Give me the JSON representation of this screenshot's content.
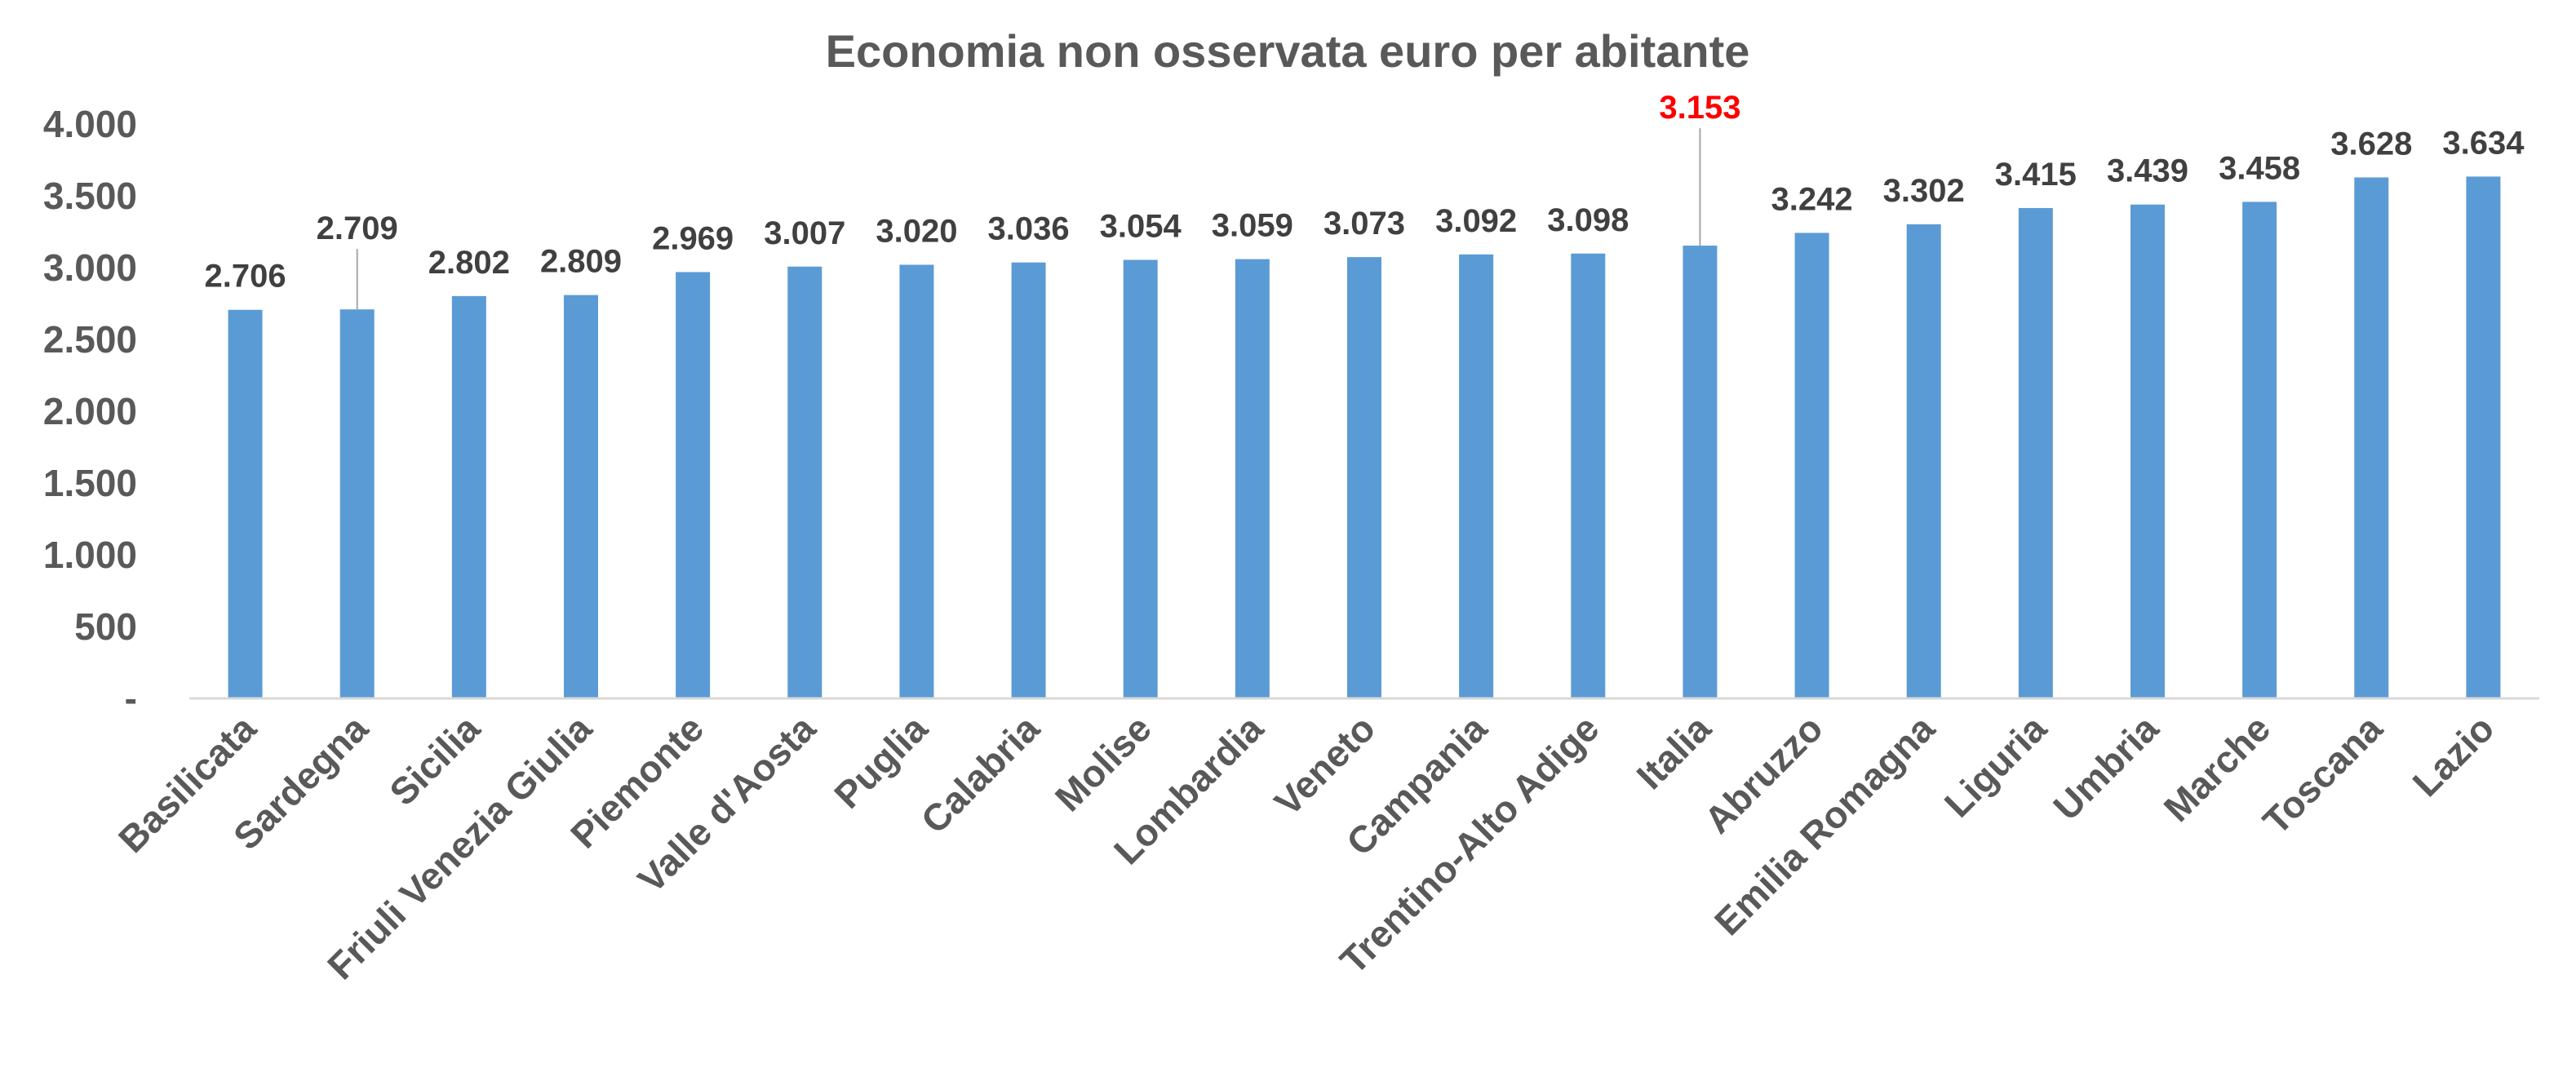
{
  "chart_data": {
    "type": "bar",
    "title": "Economia non osservata euro per abitante",
    "xlabel": "",
    "ylabel": "",
    "ylim": [
      0,
      4000
    ],
    "grid": false,
    "legend": "none",
    "y_ticks": [
      "-",
      "500",
      "1.000",
      "1.500",
      "2.000",
      "2.500",
      "3.000",
      "3.500",
      "4.000"
    ],
    "y_tick_values": [
      0,
      500,
      1000,
      1500,
      2000,
      2500,
      3000,
      3500,
      4000
    ],
    "categories": [
      "Basilicata",
      "Sardegna",
      "Sicilia",
      "Friuli Venezia Giulia",
      "Piemonte",
      "Valle d'Aosta",
      "Puglia",
      "Calabria",
      "Molise",
      "Lombardia",
      "Veneto",
      "Campania",
      "Trentino-Alto Adige",
      "Italia",
      "Abruzzo",
      "Emilia Romagna",
      "Liguria",
      "Umbria",
      "Marche",
      "Toscana",
      "Lazio"
    ],
    "values": [
      2706,
      2709,
      2802,
      2809,
      2969,
      3007,
      3020,
      3036,
      3054,
      3059,
      3073,
      3092,
      3098,
      3153,
      3242,
      3302,
      3415,
      3439,
      3458,
      3628,
      3634
    ],
    "data_labels": [
      "2.706",
      "2.709",
      "2.802",
      "2.809",
      "2.969",
      "3.007",
      "3.020",
      "3.036",
      "3.054",
      "3.059",
      "3.073",
      "3.092",
      "3.098",
      "3.153",
      "3.242",
      "3.302",
      "3.415",
      "3.439",
      "3.458",
      "3.628",
      "3.634"
    ],
    "highlight_category": "Italia",
    "colors": {
      "bar": "#5b9bd5",
      "highlight_label": "#ff0000",
      "label": "#404040",
      "axis_text": "#595959",
      "axis_line": "#d9d9d9"
    }
  }
}
